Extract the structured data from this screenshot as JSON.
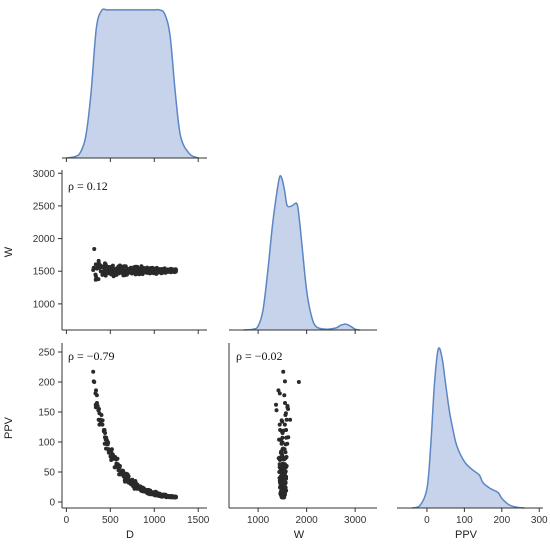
{
  "chart_data": {
    "type": "pairplot",
    "variables": [
      "D",
      "W",
      "PPV"
    ],
    "colors": {
      "kde_fill": "#c7d3ea",
      "kde_line": "#5b86c5",
      "points": "#2a2a2a"
    },
    "panels": [
      {
        "id": "kde-D",
        "type": "area",
        "x_var": "D",
        "x": [
          0,
          100,
          160,
          220,
          280,
          340,
          400,
          460,
          520,
          580,
          640,
          700,
          760,
          820,
          880,
          940,
          1000,
          1060,
          1120,
          1180,
          1240,
          1300,
          1400,
          1500
        ],
        "y": [
          0,
          0.2,
          0.8,
          3,
          9,
          18,
          20.5,
          20.6,
          20.6,
          20.6,
          20.6,
          20.6,
          20.6,
          20.6,
          20.6,
          20.6,
          20.6,
          20.6,
          20,
          17,
          9,
          3,
          0.6,
          0
        ],
        "xlim": [
          -50,
          1600
        ]
      },
      {
        "id": "scatter-D-W",
        "type": "scatter",
        "x_var": "D",
        "y_var": "W",
        "xlim": [
          -50,
          1600
        ],
        "ylim": [
          600,
          3050
        ],
        "yticks": [
          "1000",
          "1500",
          "2000",
          "2500",
          "3000"
        ],
        "ylabel": "W",
        "annotation": "ρ = 0.12"
      },
      {
        "id": "kde-W",
        "type": "area",
        "x_var": "W",
        "x": [
          700,
          900,
          1000,
          1100,
          1200,
          1300,
          1400,
          1450,
          1500,
          1550,
          1600,
          1700,
          1800,
          1850,
          1900,
          2000,
          2100,
          2200,
          2400,
          2600,
          2700,
          2800,
          2900,
          3000,
          3100
        ],
        "y": [
          0,
          0.02,
          0.1,
          0.5,
          1.5,
          2.7,
          3.6,
          3.9,
          3.8,
          3.5,
          3.15,
          3.15,
          3.2,
          2.8,
          2.2,
          1.0,
          0.35,
          0.08,
          0.02,
          0.05,
          0.12,
          0.15,
          0.1,
          0.02,
          0
        ],
        "xlim": [
          400,
          3450
        ]
      },
      {
        "id": "scatter-D-PPV",
        "type": "scatter",
        "x_var": "D",
        "y_var": "PPV",
        "xlim": [
          -50,
          1600
        ],
        "ylim": [
          -10,
          265
        ],
        "xticks": [
          "0",
          "500",
          "1000",
          "1500"
        ],
        "yticks": [
          "0",
          "50",
          "100",
          "150",
          "200",
          "250"
        ],
        "xlabel": "D",
        "ylabel": "PPV",
        "annotation": "ρ = −0.79"
      },
      {
        "id": "scatter-W-PPV",
        "type": "scatter",
        "x_var": "W",
        "y_var": "PPV",
        "xlim": [
          400,
          3450
        ],
        "ylim": [
          -10,
          265
        ],
        "xticks": [
          "1000",
          "2000",
          "3000"
        ],
        "xlabel": "W",
        "annotation": "ρ = −0.02"
      },
      {
        "id": "kde-PPV",
        "type": "area",
        "x_var": "PPV",
        "x": [
          -40,
          -20,
          0,
          10,
          20,
          30,
          40,
          50,
          60,
          70,
          80,
          100,
          120,
          140,
          150,
          170,
          190,
          200,
          220,
          240,
          260
        ],
        "y": [
          0,
          0.05,
          0.5,
          1.6,
          3.2,
          4.1,
          3.9,
          3.2,
          2.5,
          2.0,
          1.6,
          1.2,
          1.0,
          0.85,
          0.65,
          0.5,
          0.4,
          0.25,
          0.08,
          0.02,
          0
        ],
        "xlim": [
          -80,
          310
        ],
        "xticks": [
          "0",
          "100",
          "200",
          "300"
        ],
        "xlabel": "PPV"
      }
    ],
    "pairs": {
      "D": [
        305,
        311,
        317,
        331,
        334,
        335,
        337,
        347,
        348,
        356,
        364,
        367,
        371,
        376,
        376,
        388,
        391,
        399,
        410,
        412,
        426,
        427,
        432,
        434,
        436,
        439,
        440,
        446,
        447,
        448,
        451,
        454,
        464,
        470,
        475,
        478,
        480,
        482,
        484,
        500,
        502,
        510,
        512,
        515,
        518,
        529,
        529,
        537,
        537,
        540,
        546,
        549,
        554,
        557,
        565,
        569,
        570,
        570,
        581,
        586,
        593,
        593,
        596,
        600,
        604,
        605,
        609,
        615,
        620,
        622,
        633,
        638,
        642,
        645,
        648,
        651,
        653,
        657,
        664,
        667,
        667,
        675,
        679,
        682,
        688,
        693,
        693,
        696,
        697,
        705,
        708,
        710,
        710,
        719,
        733,
        737,
        745,
        747,
        750,
        750,
        753,
        755,
        760,
        761,
        772,
        775,
        777,
        784,
        784,
        787,
        790,
        790,
        795,
        799,
        804,
        806,
        808,
        816,
        822,
        823,
        828,
        829,
        830,
        833,
        838,
        840,
        844,
        846,
        850,
        854,
        858,
        859,
        860,
        866,
        867,
        873,
        879,
        880,
        881,
        883,
        890,
        901,
        901,
        908,
        918,
        918,
        919,
        922,
        931,
        938,
        939,
        943,
        945,
        949,
        950,
        953,
        955,
        959,
        962,
        963,
        973,
        981,
        983,
        983,
        992,
        996,
        997,
        998,
        1001,
        1009,
        1013,
        1014,
        1015,
        1022,
        1024,
        1027,
        1029,
        1032,
        1040,
        1043,
        1045,
        1054,
        1055,
        1055,
        1061,
        1065,
        1065,
        1066,
        1069,
        1071,
        1072,
        1078,
        1080,
        1081,
        1095,
        1098,
        1100,
        1103,
        1103,
        1104,
        1105,
        1114,
        1118,
        1123,
        1129,
        1132,
        1137,
        1140,
        1140,
        1144,
        1148,
        1148,
        1149,
        1155,
        1157,
        1158,
        1163,
        1172,
        1173,
        1175,
        1177,
        1182,
        1190,
        1193,
        1194,
        1196,
        1202,
        1210,
        1219,
        1220,
        1220,
        1224,
        1225,
        1229,
        1232,
        1233,
        1236,
        1237,
        1239,
        1240,
        1244,
        1245,
        1248
      ],
      "W": [
        1518,
        1553,
        1840,
        1447,
        1369,
        1604,
        1419,
        1540,
        1554,
        1606,
        1379,
        1659,
        1617,
        1551,
        1573,
        1588,
        1497,
        1563,
        1445,
        1485,
        1488,
        1576,
        1526,
        1454,
        1483,
        1621,
        1504,
        1579,
        1432,
        1601,
        1513,
        1500,
        1477,
        1567,
        1504,
        1538,
        1546,
        1474,
        1469,
        1564,
        1503,
        1451,
        1479,
        1564,
        1503,
        1493,
        1585,
        1424,
        1534,
        1506,
        1444,
        1478,
        1487,
        1444,
        1535,
        1444,
        1541,
        1509,
        1492,
        1553,
        1573,
        1465,
        1471,
        1501,
        1543,
        1536,
        1588,
        1524,
        1477,
        1498,
        1569,
        1492,
        1555,
        1513,
        1436,
        1469,
        1491,
        1576,
        1481,
        1515,
        1441,
        1576,
        1496,
        1505,
        1447,
        1498,
        1539,
        1493,
        1480,
        1525,
        1496,
        1476,
        1498,
        1525,
        1554,
        1548,
        1467,
        1467,
        1538,
        1531,
        1477,
        1540,
        1487,
        1498,
        1562,
        1498,
        1532,
        1533,
        1490,
        1452,
        1509,
        1568,
        1498,
        1510,
        1515,
        1567,
        1508,
        1523,
        1457,
        1481,
        1494,
        1454,
        1502,
        1529,
        1500,
        1487,
        1543,
        1534,
        1505,
        1577,
        1489,
        1553,
        1524,
        1492,
        1455,
        1525,
        1516,
        1502,
        1550,
        1488,
        1498,
        1535,
        1482,
        1511,
        1555,
        1475,
        1545,
        1503,
        1501,
        1491,
        1494,
        1542,
        1521,
        1467,
        1520,
        1487,
        1504,
        1502,
        1550,
        1474,
        1541,
        1551,
        1545,
        1524,
        1473,
        1469,
        1536,
        1528,
        1483,
        1528,
        1520,
        1509,
        1489,
        1516,
        1459,
        1485,
        1552,
        1486,
        1502,
        1481,
        1494,
        1502,
        1530,
        1530,
        1497,
        1496,
        1507,
        1518,
        1520,
        1498,
        1505,
        1523,
        1469,
        1534,
        1506,
        1482,
        1531,
        1496,
        1479,
        1518,
        1530,
        1518,
        1543,
        1489,
        1477,
        1515,
        1514,
        1513,
        1503,
        1523,
        1497,
        1509,
        1494,
        1527,
        1490,
        1518,
        1505,
        1493,
        1526,
        1517,
        1514,
        1532,
        1485,
        1536,
        1513,
        1527,
        1499,
        1503,
        1512,
        1525,
        1518,
        1513,
        1524,
        1487,
        1492,
        1502,
        1514,
        1501,
        1512,
        1512,
        1530,
        1494,
        1517,
        1498,
        1508,
        1517,
        1509,
        1508,
        1502,
        1509,
        1508
      ],
      "PPV": [
        217,
        201,
        200,
        181,
        162,
        158,
        186,
        178,
        165,
        160,
        153,
        137,
        155,
        129,
        148,
        137,
        134,
        145,
        129,
        136,
        118,
        120,
        119,
        120,
        97,
        108,
        115,
        107,
        104,
        97,
        89,
        107,
        102,
        96,
        99,
        88,
        88,
        84,
        82,
        83,
        76,
        70,
        83,
        73,
        88,
        79,
        75,
        73,
        73,
        72,
        74,
        58,
        75,
        58,
        71,
        63,
        61,
        64,
        72,
        63,
        58,
        53,
        60,
        46,
        57,
        58,
        60,
        46,
        50,
        49,
        51,
        52,
        48,
        52,
        50,
        43,
        44,
        42,
        36,
        34,
        40,
        39,
        41,
        47,
        35,
        44,
        34,
        46,
        35,
        39,
        43,
        32,
        37,
        34,
        30,
        34,
        29,
        34,
        37,
        33,
        32,
        29,
        28,
        26,
        33,
        22,
        25,
        35,
        30,
        32,
        26,
        32,
        27,
        28,
        22,
        24,
        29,
        26,
        24,
        24,
        25,
        25,
        24,
        23,
        21,
        26,
        25,
        25,
        19,
        19,
        23,
        19,
        20,
        18,
        24,
        18,
        23,
        18,
        21,
        22,
        18,
        17,
        18,
        18,
        20,
        18,
        15,
        20,
        14,
        20,
        16,
        17,
        18,
        16,
        13,
        15,
        19,
        15,
        17,
        17,
        13,
        14,
        15,
        13,
        16,
        14,
        14,
        12,
        14,
        11,
        17,
        12,
        15,
        11,
        14,
        16,
        12,
        15,
        11,
        14,
        11,
        10,
        12,
        13,
        14,
        12,
        10,
        13,
        12,
        11,
        11,
        10,
        12,
        9,
        9,
        12,
        12,
        10,
        11,
        12,
        10,
        12,
        12,
        10,
        12,
        10,
        8,
        9,
        9,
        10,
        9,
        10,
        10,
        9,
        10,
        10,
        10,
        9,
        8,
        10,
        9,
        9,
        9,
        8,
        9,
        8,
        10,
        8,
        9,
        9,
        9,
        8,
        8,
        8,
        9,
        8,
        8,
        9,
        8,
        8,
        8,
        9,
        8,
        8,
        8,
        8,
        8,
        8,
        8,
        8,
        8,
        8
      ]
    }
  }
}
